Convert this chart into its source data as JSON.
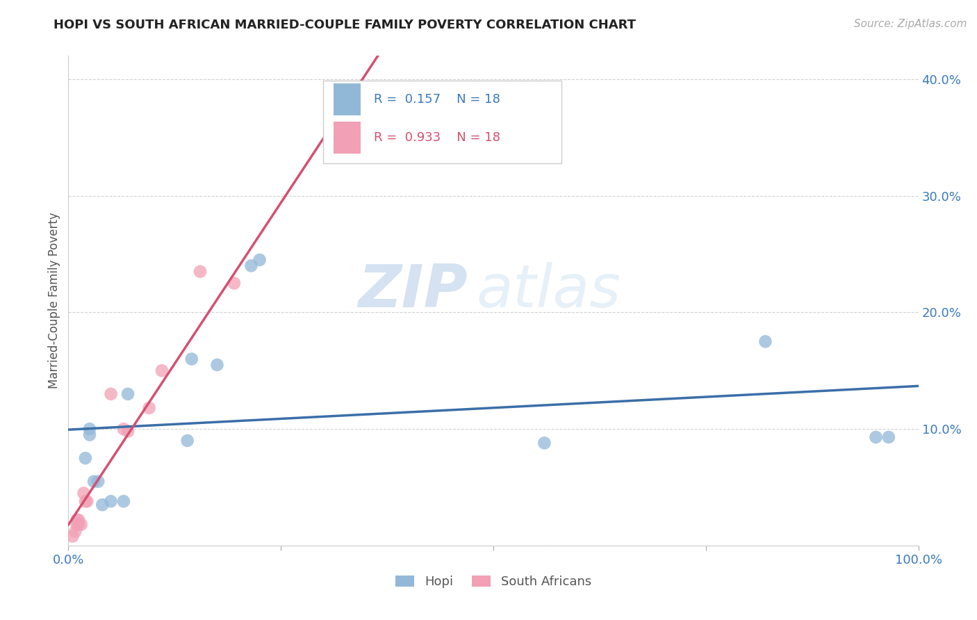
{
  "title": "HOPI VS SOUTH AFRICAN MARRIED-COUPLE FAMILY POVERTY CORRELATION CHART",
  "source": "Source: ZipAtlas.com",
  "ylabel": "Married-Couple Family Poverty",
  "xlim": [
    0,
    1.0
  ],
  "ylim": [
    0,
    0.42
  ],
  "xticks": [
    0.0,
    0.25,
    0.5,
    0.75,
    1.0
  ],
  "xticklabels": [
    "0.0%",
    "",
    "",
    "",
    "100.0%"
  ],
  "yticks": [
    0.0,
    0.1,
    0.2,
    0.3,
    0.4
  ],
  "yticklabels": [
    "",
    "10.0%",
    "20.0%",
    "30.0%",
    "40.0%"
  ],
  "hopi_R": 0.157,
  "hopi_N": 18,
  "sa_R": 0.933,
  "sa_N": 18,
  "hopi_color": "#92b8d8",
  "sa_color": "#f2a0b5",
  "hopi_line_color": "#3a6fa8",
  "sa_line_color": "#d45070",
  "watermark_zip": "ZIP",
  "watermark_atlas": "atlas",
  "legend_blue_text_color": "#3a7abf",
  "legend_pink_text_color": "#d45070",
  "tick_label_color": "#3a7abf",
  "hopi_x": [
    0.02,
    0.025,
    0.025,
    0.03,
    0.035,
    0.04,
    0.05,
    0.065,
    0.07,
    0.14,
    0.145,
    0.175,
    0.215,
    0.225,
    0.56,
    0.82,
    0.95,
    0.965
  ],
  "hopi_y": [
    0.075,
    0.1,
    0.095,
    0.055,
    0.055,
    0.035,
    0.038,
    0.038,
    0.13,
    0.09,
    0.16,
    0.155,
    0.24,
    0.245,
    0.088,
    0.175,
    0.093,
    0.093
  ],
  "sa_x": [
    0.005,
    0.008,
    0.01,
    0.01,
    0.012,
    0.012,
    0.015,
    0.018,
    0.02,
    0.022,
    0.05,
    0.065,
    0.07,
    0.095,
    0.11,
    0.155,
    0.195,
    0.33
  ],
  "sa_y": [
    0.008,
    0.012,
    0.018,
    0.022,
    0.018,
    0.022,
    0.018,
    0.045,
    0.038,
    0.038,
    0.13,
    0.1,
    0.098,
    0.118,
    0.15,
    0.235,
    0.225,
    0.355
  ],
  "background_color": "#ffffff",
  "grid_color": "#cccccc",
  "spine_color": "#cccccc"
}
